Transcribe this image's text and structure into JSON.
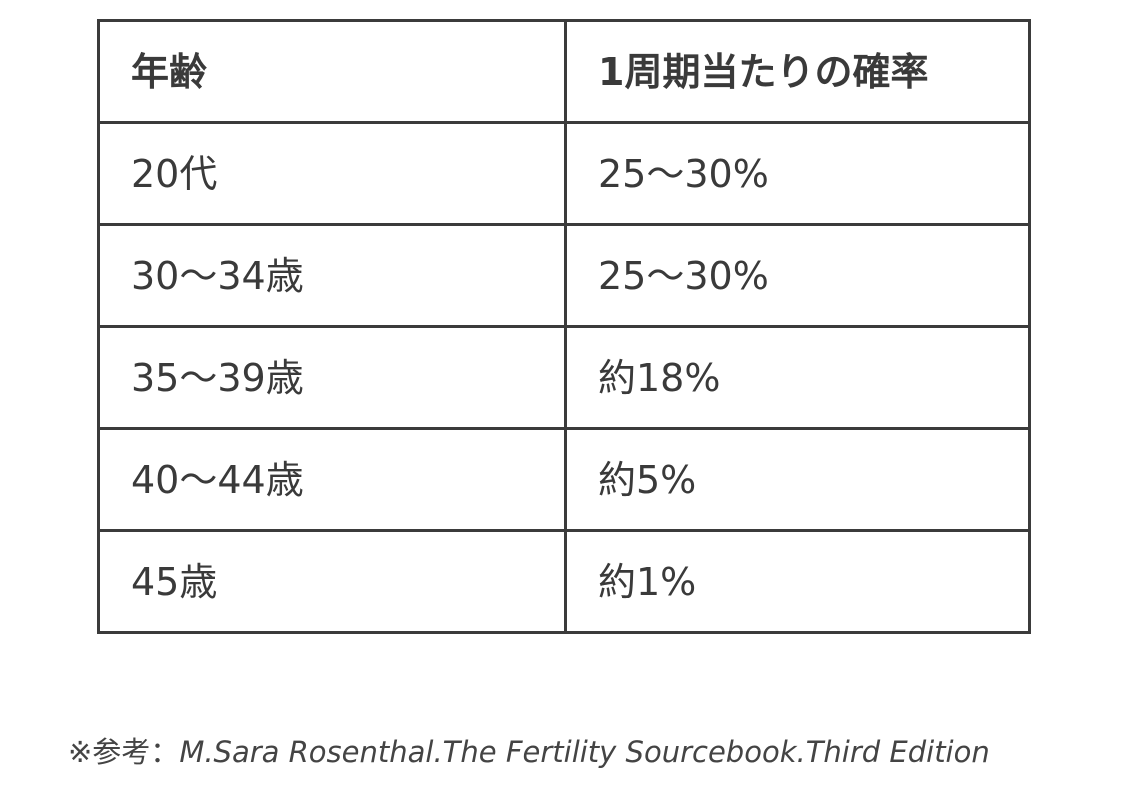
{
  "table": {
    "headers": [
      "年齢",
      "1周期当たりの確率"
    ],
    "rows": [
      [
        "20代",
        "25〜30%"
      ],
      [
        "30〜34歳",
        "25〜30%"
      ],
      [
        "35〜39歳",
        "約18%"
      ],
      [
        "40〜44歳",
        "約5%"
      ],
      [
        "45歳",
        "約1%"
      ]
    ]
  },
  "reference": {
    "prefix": "※参考：",
    "source": "M.Sara Rosenthal.The Fertility Sourcebook.Third Edition"
  }
}
